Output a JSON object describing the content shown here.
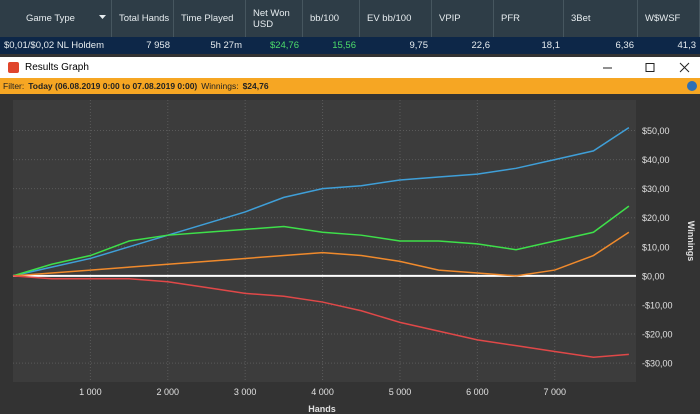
{
  "table": {
    "headers": [
      "Game Type",
      "Total Hands",
      "Time Played",
      "Net Won USD",
      "bb/100",
      "EV bb/100",
      "VPIP",
      "PFR",
      "3Bet",
      "W$WSF"
    ],
    "row": [
      "$0,01/$0,02 NL Holdem",
      "7 958",
      "5h 27m",
      "$24,76",
      "15,56",
      "9,75",
      "22,6",
      "18,1",
      "6,36",
      "41,3"
    ]
  },
  "window": {
    "title": "Results Graph"
  },
  "filter": {
    "label": "Filter:",
    "range": "Today (06.08.2019 0:00 to 07.08.2019 0:00)",
    "winnings_label": "Winnings:",
    "winnings": "$24,76"
  },
  "chart_data": {
    "type": "line",
    "x_label": "Hands",
    "y_label": "Winnings",
    "x": [
      0,
      500,
      1000,
      1500,
      2000,
      2500,
      3000,
      3500,
      4000,
      4500,
      5000,
      5500,
      6000,
      6500,
      7000,
      7500,
      7958
    ],
    "series": [
      {
        "color": "#3f9fd8",
        "values": [
          0,
          3,
          6,
          10,
          14,
          18,
          22,
          27,
          30,
          31,
          33,
          34,
          35,
          37,
          40,
          43,
          51
        ]
      },
      {
        "color": "#3ee04a",
        "values": [
          0,
          4,
          7,
          12,
          14,
          15,
          16,
          17,
          15,
          14,
          12,
          12,
          11,
          9,
          12,
          15,
          24
        ]
      },
      {
        "color": "#f08a2c",
        "values": [
          0,
          1,
          2,
          3,
          4,
          5,
          6,
          7,
          8,
          7,
          5,
          2,
          1,
          0,
          2,
          7,
          15
        ]
      },
      {
        "color": "#e04848",
        "values": [
          0,
          -1,
          -1,
          -1,
          -2,
          -4,
          -6,
          -7,
          -9,
          -12,
          -16,
          -19,
          -22,
          -24,
          -26,
          -28,
          -27
        ]
      }
    ],
    "xlim": [
      0,
      8050
    ],
    "ylim": [
      -36.5,
      60.5
    ],
    "xticks": [
      {
        "value": 1000,
        "label": "1 000"
      },
      {
        "value": 2000,
        "label": "2 000"
      },
      {
        "value": 3000,
        "label": "3 000"
      },
      {
        "value": 4000,
        "label": "4 000"
      },
      {
        "value": 5000,
        "label": "5 000"
      },
      {
        "value": 6000,
        "label": "6 000"
      },
      {
        "value": 7000,
        "label": "7 000"
      }
    ],
    "yticks": [
      {
        "value": -30,
        "label": "-$30,00"
      },
      {
        "value": -20,
        "label": "-$20,00"
      },
      {
        "value": -10,
        "label": "-$10,00"
      },
      {
        "value": 0,
        "label": "$0,00"
      },
      {
        "value": 10,
        "label": "$10,00"
      },
      {
        "value": 20,
        "label": "$20,00"
      },
      {
        "value": 30,
        "label": "$30,00"
      },
      {
        "value": 40,
        "label": "$40,00"
      },
      {
        "value": 50,
        "label": "$50,00"
      }
    ],
    "grid": true
  }
}
